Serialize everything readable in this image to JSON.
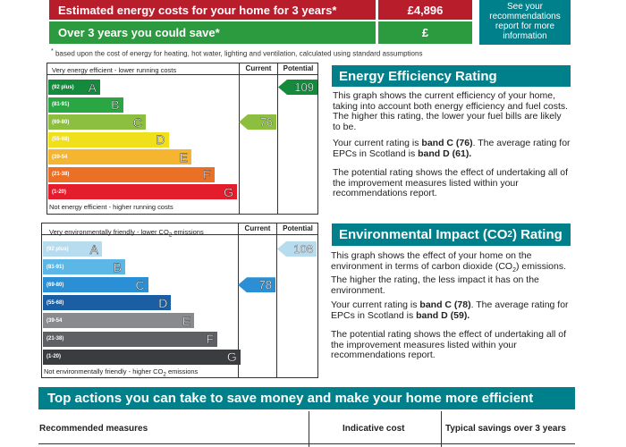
{
  "costs": {
    "row1_label": "Estimated energy costs for your home for 3 years*",
    "row1_value": "£4,896",
    "row2_label": "Over 3 years you could save*",
    "row2_value": "£",
    "see_box": [
      "See your",
      "recommendations",
      "report for more",
      "information"
    ],
    "footnote_star": "*",
    "footnote": "based upon the cost of energy for heating, hot water, lighting and ventilation, calculated using standard assumptions"
  },
  "energy_chart": {
    "top_text": "Very energy efficient - lower running costs",
    "bottom_text": "Not energy efficient - higher running costs",
    "col_current": "Current",
    "col_potential": "Potential",
    "bands": [
      {
        "range": "(92 plus)",
        "letter": "A",
        "color": "#138a3c"
      },
      {
        "range": "(81-91)",
        "letter": "B",
        "color": "#2aa642"
      },
      {
        "range": "(69-80)",
        "letter": "C",
        "color": "#8cbf3f"
      },
      {
        "range": "(55-68)",
        "letter": "D",
        "color": "#f0e01c"
      },
      {
        "range": "(39-54",
        "letter": "E",
        "color": "#f5b531"
      },
      {
        "range": "(21-38)",
        "letter": "F",
        "color": "#eb7025"
      },
      {
        "range": "(1-20)",
        "letter": "G",
        "color": "#e31d2c"
      }
    ],
    "current": 76,
    "potential": 109,
    "current_color": "#8cbf3f",
    "potential_color": "#138a3c"
  },
  "env_chart": {
    "top_text_pre": "Very environmentally friendly - lower CO",
    "top_text_sub": "2",
    "top_text_post": " emissions",
    "bottom_text_pre": "Not environmentally friendly - higher CO",
    "bottom_text_sub": "2",
    "bottom_text_post": " emissions",
    "col_current": "Current",
    "col_potential": "Potential",
    "bands": [
      {
        "range": "(92 plus)",
        "letter": "A",
        "color": "#b8dcef"
      },
      {
        "range": "(81-91)",
        "letter": "B",
        "color": "#5bb8e6"
      },
      {
        "range": "(69-80)",
        "letter": "C",
        "color": "#2a8fd4"
      },
      {
        "range": "(55-68)",
        "letter": "D",
        "color": "#1a5fa3"
      },
      {
        "range": "(39-54",
        "letter": "E",
        "color": "#888a8d"
      },
      {
        "range": "(21-38)",
        "letter": "F",
        "color": "#5e6064"
      },
      {
        "range": "(1-20)",
        "letter": "G",
        "color": "#3b3c3f"
      }
    ],
    "current": 78,
    "potential": 108,
    "current_color": "#2a8fd4",
    "potential_color": "#b8dcef"
  },
  "efficiency_panel": {
    "title": "Energy Efficiency Rating",
    "para1": "This graph shows the current efficiency of your home, taking into account both energy efficiency and fuel costs. The higher this rating, the lower your fuel bills are likely to be.",
    "para2_pre": "Your current rating is ",
    "para2_b1": "band C (76)",
    "para2_mid": ". The average rating for EPCs in Scotland is ",
    "para2_b2": "band D (61).",
    "para3": "The potential rating shows the effect of undertaking all of the improvement measures listed within your recommendations report."
  },
  "impact_panel": {
    "title_pre": "Environmental Impact (CO",
    "title_sub": "2",
    "title_post": ") Rating",
    "para1_pre": "This graph shows the effect of your home on the environment in terms of carbon dioxide (CO",
    "para1_sub": "2",
    "para1_post": ") emissions. The higher the rating, the less impact it has on the environment.",
    "para2_pre": "Your current rating is ",
    "para2_b1": "band C (78)",
    "para2_mid": ". The average rating for EPCs in Scotland is ",
    "para2_b2": "band D (59).",
    "para3": "The potential rating shows the effect of undertaking all of the improvement measures listed within your recommendations report."
  },
  "actions": {
    "title": "Top actions you can take to save money and make your home more efficient",
    "col1": "Recommended measures",
    "col2": "Indicative cost",
    "col3": "Typical savings over 3 years"
  }
}
